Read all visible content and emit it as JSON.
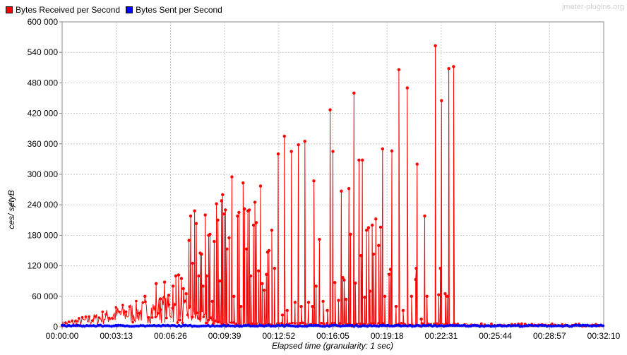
{
  "watermark": "jmeter-plugins.org",
  "legend": [
    {
      "label": "Bytes Received per Second",
      "color": "#ff0000"
    },
    {
      "label": "Bytes Sent per Second",
      "color": "#0000ff"
    }
  ],
  "chart_data": {
    "type": "line",
    "xlabel": "Elapsed time (granularity: 1 sec)",
    "ylabel": "ces/ sɇtyB",
    "x_ticks": [
      "00:00:00",
      "00:03:13",
      "00:06:26",
      "00:09:39",
      "00:12:52",
      "00:16:05",
      "00:19:18",
      "00:22:31",
      "00:25:44",
      "00:28:57",
      "00:32:10"
    ],
    "y_ticks": [
      "0",
      "60 000",
      "120 000",
      "180 000",
      "240 000",
      "300 000",
      "360 000",
      "420 000",
      "480 000",
      "540 000",
      "600 000"
    ],
    "ylim": [
      0,
      600000
    ],
    "xlim_seconds": [
      0,
      1930
    ],
    "grid": true,
    "legend_position": "top-left",
    "series": [
      {
        "name": "Bytes Received per Second",
        "color": "#ff0000",
        "baseline_ramp": [
          [
            0,
            5000
          ],
          [
            60,
            10000
          ],
          [
            120,
            15000
          ],
          [
            180,
            22000
          ],
          [
            240,
            27000
          ],
          [
            300,
            30000
          ],
          [
            360,
            35000
          ],
          [
            420,
            32000
          ],
          [
            480,
            20000
          ],
          [
            540,
            10000
          ],
          [
            600,
            5000
          ],
          [
            1930,
            3000
          ]
        ],
        "spikes": [
          [
            295,
            60000
          ],
          [
            335,
            85000
          ],
          [
            350,
            55000
          ],
          [
            365,
            88000
          ],
          [
            380,
            62000
          ],
          [
            395,
            80000
          ],
          [
            405,
            100000
          ],
          [
            415,
            102000
          ],
          [
            425,
            95000
          ],
          [
            432,
            75000
          ],
          [
            442,
            65000
          ],
          [
            452,
            170000
          ],
          [
            458,
            218000
          ],
          [
            465,
            125000
          ],
          [
            472,
            228000
          ],
          [
            478,
            203000
          ],
          [
            487,
            100000
          ],
          [
            492,
            145000
          ],
          [
            497,
            143000
          ],
          [
            502,
            80000
          ],
          [
            510,
            220000
          ],
          [
            515,
            100000
          ],
          [
            522,
            180000
          ],
          [
            527,
            182000
          ],
          [
            535,
            50000
          ],
          [
            542,
            168000
          ],
          [
            550,
            242000
          ],
          [
            555,
            210000
          ],
          [
            562,
            90000
          ],
          [
            568,
            248000
          ],
          [
            572,
            260000
          ],
          [
            577,
            222000
          ],
          [
            582,
            230000
          ],
          [
            587,
            153000
          ],
          [
            595,
            175000
          ],
          [
            605,
            295000
          ],
          [
            612,
            60000
          ],
          [
            625,
            218000
          ],
          [
            630,
            225000
          ],
          [
            637,
            40000
          ],
          [
            645,
            283000
          ],
          [
            650,
            232000
          ],
          [
            657,
            153000
          ],
          [
            662,
            228000
          ],
          [
            667,
            230000
          ],
          [
            672,
            100000
          ],
          [
            682,
            200000
          ],
          [
            687,
            245000
          ],
          [
            692,
            205000
          ],
          [
            700,
            110000
          ],
          [
            707,
            277000
          ],
          [
            713,
            85000
          ],
          [
            720,
            72000
          ],
          [
            728,
            103000
          ],
          [
            732,
            147000
          ],
          [
            737,
            150000
          ],
          [
            747,
            190000
          ],
          [
            757,
            115000
          ],
          [
            770,
            340000
          ],
          [
            785,
            23000
          ],
          [
            792,
            375000
          ],
          [
            802,
            32000
          ],
          [
            817,
            345000
          ],
          [
            830,
            48000
          ],
          [
            842,
            358000
          ],
          [
            852,
            40000
          ],
          [
            865,
            365000
          ],
          [
            878,
            48000
          ],
          [
            892,
            40000
          ],
          [
            897,
            287000
          ],
          [
            905,
            80000
          ],
          [
            917,
            172000
          ],
          [
            930,
            50000
          ],
          [
            945,
            32000
          ],
          [
            955,
            427000
          ],
          [
            965,
            345000
          ],
          [
            972,
            87000
          ],
          [
            985,
            52000
          ],
          [
            995,
            267000
          ],
          [
            1000,
            97000
          ],
          [
            1005,
            92000
          ],
          [
            1012,
            54000
          ],
          [
            1022,
            272000
          ],
          [
            1028,
            182000
          ],
          [
            1040,
            460000
          ],
          [
            1045,
            86000
          ],
          [
            1058,
            328000
          ],
          [
            1065,
            140000
          ],
          [
            1070,
            328000
          ],
          [
            1078,
            58000
          ],
          [
            1085,
            190000
          ],
          [
            1092,
            195000
          ],
          [
            1097,
            70000
          ],
          [
            1105,
            200000
          ],
          [
            1110,
            143000
          ],
          [
            1118,
            212000
          ],
          [
            1128,
            160000
          ],
          [
            1135,
            196000
          ],
          [
            1142,
            350000
          ],
          [
            1150,
            60000
          ],
          [
            1165,
            103000
          ],
          [
            1170,
            113000
          ],
          [
            1175,
            346000
          ],
          [
            1190,
            40000
          ],
          [
            1200,
            506000
          ],
          [
            1215,
            32000
          ],
          [
            1230,
            470000
          ],
          [
            1245,
            60000
          ],
          [
            1260,
            93000
          ],
          [
            1262,
            115000
          ],
          [
            1265,
            320000
          ],
          [
            1280,
            15000
          ],
          [
            1292,
            218000
          ],
          [
            1300,
            60000
          ],
          [
            1330,
            553000
          ],
          [
            1342,
            63000
          ],
          [
            1348,
            115000
          ],
          [
            1352,
            445000
          ],
          [
            1365,
            65000
          ],
          [
            1372,
            60000
          ],
          [
            1378,
            508000
          ],
          [
            1395,
            512000
          ]
        ]
      },
      {
        "name": "Bytes Sent per Second",
        "color": "#0000ff",
        "baseline": 2000
      }
    ]
  }
}
